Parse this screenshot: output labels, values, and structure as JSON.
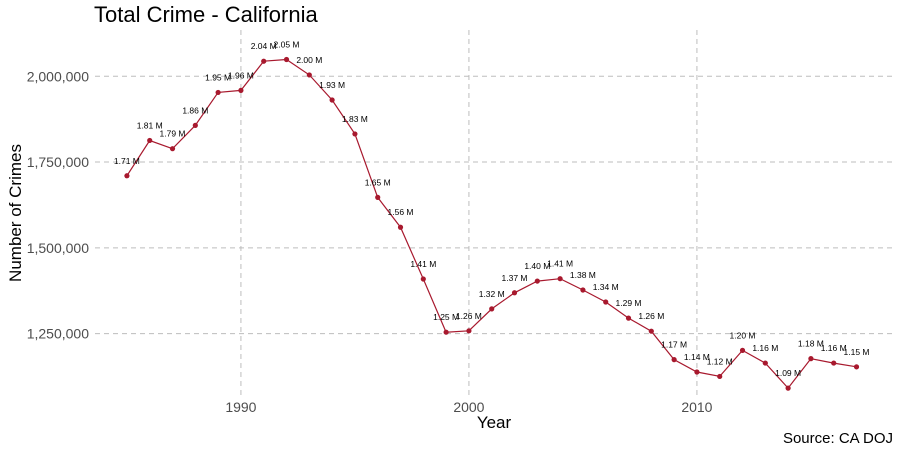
{
  "title": "Total Crime - California",
  "caption": "Source: CA DOJ",
  "colors": {
    "line": "#a8192e",
    "point": "#a8192e",
    "grid": "#bdbdbd"
  },
  "chart_data": {
    "type": "line",
    "title": "Total Crime - California",
    "xlabel": "Year",
    "ylabel": "Number of Crimes",
    "xlim": [
      1983.6,
      2018.6
    ],
    "ylim": [
      1068000,
      2135000
    ],
    "xticks": [
      1990,
      2000,
      2010
    ],
    "xtick_labels": [
      "1990",
      "2000",
      "2010"
    ],
    "yticks": [
      1250000,
      1500000,
      1750000,
      2000000
    ],
    "ytick_labels": [
      "1,250,000",
      "1,500,000",
      "1,750,000",
      "2,000,000"
    ],
    "grid": true,
    "legend": "none",
    "x": [
      1985,
      1986,
      1987,
      1988,
      1989,
      1990,
      1991,
      1992,
      1993,
      1994,
      1995,
      1996,
      1997,
      1998,
      1999,
      2000,
      2001,
      2002,
      2003,
      2004,
      2005,
      2006,
      2007,
      2008,
      2009,
      2010,
      2011,
      2012,
      2013,
      2014,
      2015,
      2016,
      2017
    ],
    "values": [
      1710000,
      1813000,
      1789000,
      1857000,
      1953000,
      1959000,
      2044000,
      2049000,
      2004000,
      1931000,
      1832000,
      1647000,
      1560000,
      1409000,
      1254000,
      1258000,
      1322000,
      1369000,
      1403000,
      1410000,
      1377000,
      1342000,
      1295000,
      1257000,
      1174000,
      1138000,
      1125000,
      1201000,
      1164000,
      1091000,
      1177000,
      1164000,
      1153000
    ],
    "labels": [
      "1.71 M",
      "1.81 M",
      "1.79 M",
      "1.86 M",
      "1.95 M",
      "1.96 M",
      "2.04 M",
      "2.05 M",
      "2.00 M",
      "1.93 M",
      "1.83 M",
      "1.65 M",
      "1.56 M",
      "1.41 M",
      "1.25 M",
      "1.26 M",
      "1.32 M",
      "1.37 M",
      "1.40 M",
      "1.41 M",
      "1.38 M",
      "1.34 M",
      "1.29 M",
      "1.26 M",
      "1.17 M",
      "1.14 M",
      "1.12 M",
      "1.20 M",
      "1.16 M",
      "1.09 M",
      "1.18 M",
      "1.16 M",
      "1.15 M"
    ]
  }
}
